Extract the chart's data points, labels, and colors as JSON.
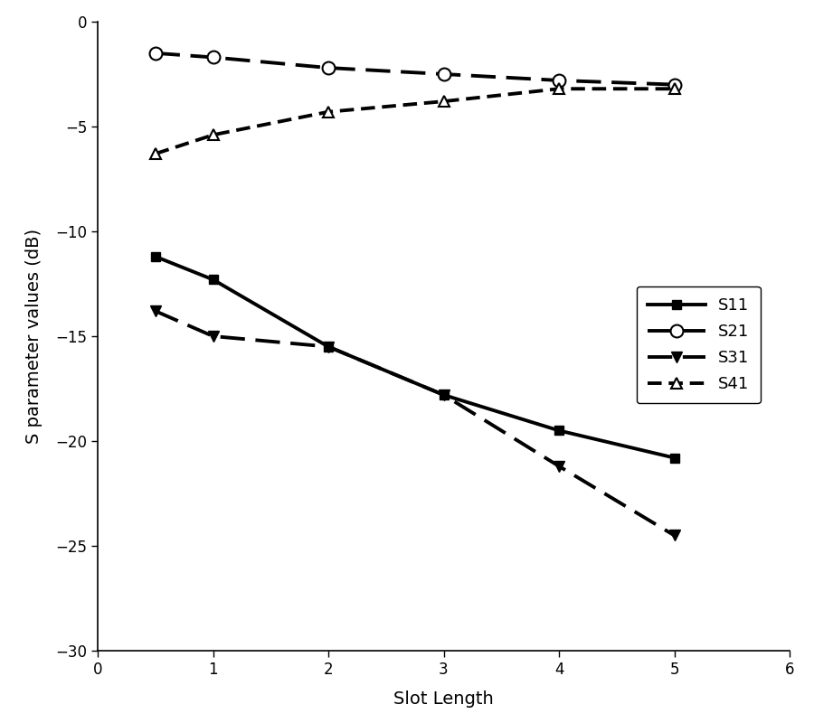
{
  "x": [
    0.5,
    1,
    2,
    3,
    4,
    5
  ],
  "S11": [
    -11.2,
    -12.3,
    -15.5,
    -17.8,
    -19.5,
    -20.8
  ],
  "S21": [
    -1.5,
    -1.7,
    -2.2,
    -2.5,
    -2.8,
    -3.0
  ],
  "S31": [
    -13.8,
    -15.0,
    -15.5,
    -17.8,
    -21.2,
    -24.5
  ],
  "S41": [
    -6.3,
    -5.4,
    -4.3,
    -3.8,
    -3.2,
    -3.2
  ],
  "xlabel": "Slot Length",
  "ylabel": "S parameter values (dB)",
  "xlim": [
    0,
    6
  ],
  "ylim": [
    -30,
    0
  ],
  "xticks": [
    0,
    1,
    2,
    3,
    4,
    5,
    6
  ],
  "yticks": [
    0,
    -5,
    -10,
    -15,
    -20,
    -25,
    -30
  ],
  "legend_labels": [
    "S11",
    "S21",
    "S31",
    "S41"
  ],
  "background_color": "#ffffff",
  "figsize": [
    9.0,
    8.0
  ],
  "dpi": 100
}
